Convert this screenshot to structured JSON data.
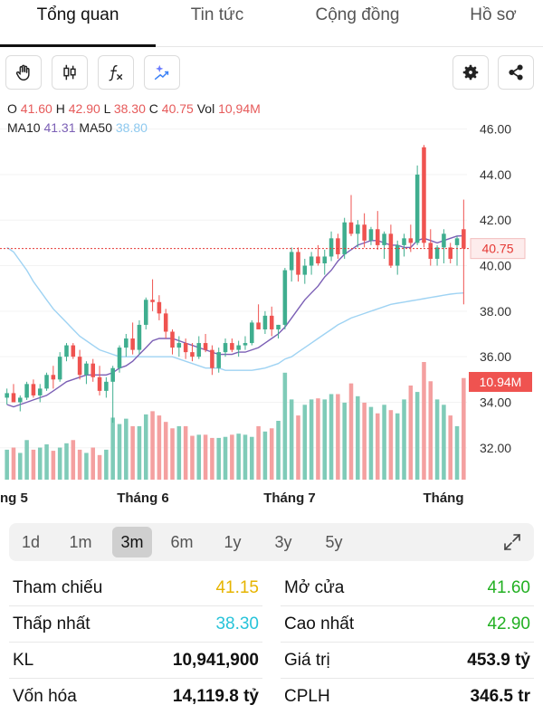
{
  "tabs": [
    {
      "label": "Tổng quan",
      "active": true
    },
    {
      "label": "Tin tức",
      "active": false
    },
    {
      "label": "Cộng đồng",
      "active": false
    },
    {
      "label": "Hồ sơ",
      "active": false
    }
  ],
  "toolbar": {
    "left_icons": [
      "hand-icon",
      "candlestick-icon",
      "function-icon",
      "sparkle-icon"
    ],
    "right_icons": [
      "gear-icon",
      "share-icon"
    ]
  },
  "ohlc": {
    "o_label": "O",
    "o_value": "41.60",
    "h_label": "H",
    "h_value": "42.90",
    "l_label": "L",
    "l_value": "38.30",
    "c_label": "C",
    "c_value": "40.75",
    "vol_label": "Vol",
    "vol_value": "10,94M"
  },
  "ma": {
    "ma10_label": "MA10",
    "ma10_value": "41.31",
    "ma50_label": "MA50",
    "ma50_value": "38.80"
  },
  "chart_data": {
    "type": "candlestick",
    "y_ticks": [
      "46.00",
      "44.00",
      "42.00",
      "40.00",
      "38.00",
      "36.00",
      "34.00",
      "32.00"
    ],
    "ylim": [
      30.6,
      46.5
    ],
    "x_labels": [
      "ng 5",
      "Tháng 6",
      "Tháng 7",
      "Tháng"
    ],
    "current_price_label": "40.75",
    "current_price": 40.75,
    "volume_label": "10.94M",
    "colors": {
      "up": "#3fae8f",
      "down": "#ef5350",
      "vol_up": "#7fcbb8",
      "vol_down": "#f4a0a0",
      "ma10": "#7b5fb5",
      "ma50": "#9fd3f3",
      "price_line": "#e53935"
    },
    "candles": [
      [
        34.2,
        34.6,
        33.9,
        34.4
      ],
      [
        34.4,
        34.8,
        34.0,
        34.0
      ],
      [
        34.0,
        34.3,
        33.6,
        34.2
      ],
      [
        34.2,
        34.9,
        34.1,
        34.8
      ],
      [
        34.8,
        35.0,
        34.2,
        34.3
      ],
      [
        34.3,
        34.8,
        34.0,
        34.6
      ],
      [
        34.6,
        35.3,
        34.5,
        35.2
      ],
      [
        35.2,
        35.6,
        34.6,
        35.0
      ],
      [
        35.0,
        36.2,
        34.9,
        36.0
      ],
      [
        36.0,
        36.6,
        35.8,
        36.5
      ],
      [
        36.5,
        36.6,
        35.9,
        36.0
      ],
      [
        36.0,
        36.3,
        35.0,
        35.2
      ],
      [
        35.2,
        35.8,
        34.8,
        35.7
      ],
      [
        35.7,
        35.9,
        34.9,
        35.1
      ],
      [
        35.1,
        35.6,
        34.3,
        34.5
      ],
      [
        34.5,
        35.1,
        34.2,
        34.9
      ],
      [
        34.9,
        35.6,
        33.1,
        35.5
      ],
      [
        35.5,
        36.5,
        35.3,
        36.4
      ],
      [
        36.4,
        37.0,
        36.0,
        36.8
      ],
      [
        36.8,
        37.5,
        36.1,
        36.3
      ],
      [
        36.3,
        37.6,
        36.1,
        37.4
      ],
      [
        37.4,
        38.6,
        37.2,
        38.5
      ],
      [
        38.5,
        39.4,
        38.0,
        38.4
      ],
      [
        38.4,
        38.7,
        37.6,
        37.9
      ],
      [
        37.9,
        38.1,
        36.8,
        37.1
      ],
      [
        37.1,
        37.2,
        36.1,
        36.4
      ],
      [
        36.4,
        36.9,
        36.0,
        36.6
      ],
      [
        36.6,
        36.8,
        35.9,
        36.2
      ],
      [
        36.2,
        36.6,
        35.8,
        36.0
      ],
      [
        36.0,
        36.9,
        35.9,
        36.6
      ],
      [
        36.6,
        37.0,
        36.2,
        36.3
      ],
      [
        36.3,
        36.5,
        35.2,
        35.5
      ],
      [
        35.5,
        36.4,
        35.3,
        36.2
      ],
      [
        36.2,
        36.8,
        36.0,
        36.6
      ],
      [
        36.6,
        36.8,
        36.2,
        36.3
      ],
      [
        36.3,
        36.7,
        36.0,
        36.5
      ],
      [
        36.5,
        36.9,
        36.3,
        36.6
      ],
      [
        36.6,
        37.6,
        36.5,
        37.5
      ],
      [
        37.5,
        38.3,
        37.3,
        37.2
      ],
      [
        37.2,
        38.0,
        37.0,
        37.8
      ],
      [
        37.8,
        38.2,
        36.9,
        37.2
      ],
      [
        37.2,
        37.4,
        36.8,
        37.4
      ],
      [
        37.4,
        39.9,
        37.2,
        39.8
      ],
      [
        39.8,
        40.8,
        39.3,
        40.6
      ],
      [
        40.6,
        40.8,
        39.3,
        39.6
      ],
      [
        39.6,
        40.3,
        39.2,
        40.0
      ],
      [
        40.0,
        40.6,
        39.6,
        40.4
      ],
      [
        40.4,
        40.9,
        40.0,
        40.1
      ],
      [
        40.1,
        40.7,
        39.6,
        40.4
      ],
      [
        40.4,
        41.5,
        40.2,
        41.2
      ],
      [
        41.2,
        41.4,
        40.3,
        40.5
      ],
      [
        40.5,
        42.1,
        40.3,
        41.9
      ],
      [
        41.9,
        43.1,
        41.3,
        41.4
      ],
      [
        41.4,
        42.0,
        40.8,
        41.8
      ],
      [
        41.8,
        42.3,
        40.8,
        41.1
      ],
      [
        41.1,
        41.7,
        40.9,
        41.6
      ],
      [
        41.6,
        42.4,
        40.7,
        40.9
      ],
      [
        40.9,
        41.5,
        40.3,
        41.4
      ],
      [
        41.4,
        41.8,
        39.9,
        40.0
      ],
      [
        40.0,
        41.1,
        39.6,
        40.9
      ],
      [
        40.9,
        41.4,
        40.4,
        41.2
      ],
      [
        41.2,
        41.8,
        40.6,
        41.0
      ],
      [
        41.0,
        44.4,
        40.9,
        44.0
      ],
      [
        45.2,
        45.3,
        40.8,
        41.0
      ],
      [
        41.0,
        41.6,
        40.0,
        40.3
      ],
      [
        40.3,
        40.9,
        40.0,
        40.8
      ],
      [
        40.8,
        41.6,
        40.1,
        41.4
      ],
      [
        40.8,
        41.0,
        40.1,
        40.3
      ],
      [
        40.9,
        41.3,
        40.0,
        41.2
      ],
      [
        41.6,
        42.9,
        38.3,
        40.75
      ]
    ],
    "volumes": [
      28,
      30,
      25,
      37,
      28,
      30,
      33,
      27,
      30,
      34,
      37,
      28,
      25,
      30,
      23,
      28,
      58,
      52,
      57,
      50,
      50,
      61,
      64,
      60,
      54,
      48,
      50,
      50,
      41,
      42,
      42,
      39,
      39,
      40,
      42,
      43,
      42,
      40,
      50,
      45,
      48,
      55,
      100,
      75,
      60,
      70,
      75,
      76,
      75,
      80,
      80,
      72,
      90,
      78,
      72,
      68,
      62,
      70,
      65,
      62,
      75,
      88,
      82,
      110,
      92,
      75,
      70,
      60,
      50,
      95
    ],
    "volume_up_flags": [
      1,
      0,
      1,
      1,
      0,
      1,
      1,
      0,
      1,
      1,
      0,
      0,
      1,
      0,
      0,
      1,
      1,
      1,
      1,
      0,
      1,
      1,
      0,
      0,
      0,
      0,
      1,
      0,
      0,
      1,
      0,
      0,
      1,
      1,
      0,
      1,
      1,
      1,
      0,
      1,
      0,
      1,
      1,
      1,
      0,
      1,
      1,
      0,
      1,
      1,
      0,
      1,
      0,
      1,
      0,
      1,
      0,
      1,
      0,
      1,
      1,
      0,
      1,
      0,
      0,
      1,
      1,
      0,
      1,
      0
    ],
    "ma10": [
      33.9,
      33.8,
      33.9,
      34.0,
      34.1,
      34.2,
      34.3,
      34.5,
      34.7,
      34.9,
      35.0,
      35.1,
      35.2,
      35.2,
      35.2,
      35.2,
      35.3,
      35.5,
      35.6,
      35.8,
      36.1,
      36.4,
      36.7,
      36.8,
      36.8,
      36.8,
      36.7,
      36.6,
      36.5,
      36.4,
      36.3,
      36.2,
      36.1,
      36.1,
      36.1,
      36.2,
      36.2,
      36.3,
      36.4,
      36.6,
      36.8,
      37.0,
      37.3,
      37.7,
      38.1,
      38.5,
      38.8,
      39.1,
      39.5,
      39.8,
      40.2,
      40.5,
      40.7,
      40.9,
      41.0,
      41.1,
      41.1,
      41.0,
      40.9,
      40.9,
      40.8,
      40.8,
      41.1,
      41.2,
      41.1,
      41.0,
      41.1,
      41.2,
      41.3,
      41.31
    ],
    "ma50": [
      40.8,
      40.6,
      40.2,
      39.8,
      39.3,
      38.9,
      38.5,
      38.1,
      37.8,
      37.5,
      37.2,
      36.9,
      36.7,
      36.5,
      36.3,
      36.2,
      36.1,
      36.0,
      36.0,
      36.0,
      36.0,
      36.0,
      36.0,
      36.0,
      36.0,
      36.0,
      35.9,
      35.8,
      35.7,
      35.6,
      35.5,
      35.5,
      35.5,
      35.4,
      35.4,
      35.4,
      35.4,
      35.4,
      35.45,
      35.5,
      35.6,
      35.7,
      35.9,
      36.0,
      36.2,
      36.4,
      36.6,
      36.8,
      37.0,
      37.2,
      37.4,
      37.55,
      37.7,
      37.8,
      37.9,
      38.0,
      38.1,
      38.2,
      38.3,
      38.35,
      38.4,
      38.45,
      38.5,
      38.55,
      38.6,
      38.65,
      38.7,
      38.75,
      38.78,
      38.8
    ]
  },
  "ranges": [
    {
      "label": "1d",
      "active": false
    },
    {
      "label": "1m",
      "active": false
    },
    {
      "label": "3m",
      "active": true
    },
    {
      "label": "6m",
      "active": false
    },
    {
      "label": "1y",
      "active": false
    },
    {
      "label": "3y",
      "active": false
    },
    {
      "label": "5y",
      "active": false
    }
  ],
  "stats": {
    "ref_label": "Tham chiếu",
    "ref_value": "41.15",
    "open_label": "Mở cửa",
    "open_value": "41.60",
    "low_label": "Thấp nhất",
    "low_value": "38.30",
    "high_label": "Cao nhất",
    "high_value": "42.90",
    "vol_label": "KL",
    "vol_value": "10,941,900",
    "value_label": "Giá trị",
    "value_value": "453.9 tỷ",
    "cap_label": "Vốn hóa",
    "cap_value": "14,119.8 tỷ",
    "shares_label": "CPLH",
    "shares_value": "346.5 tr"
  }
}
